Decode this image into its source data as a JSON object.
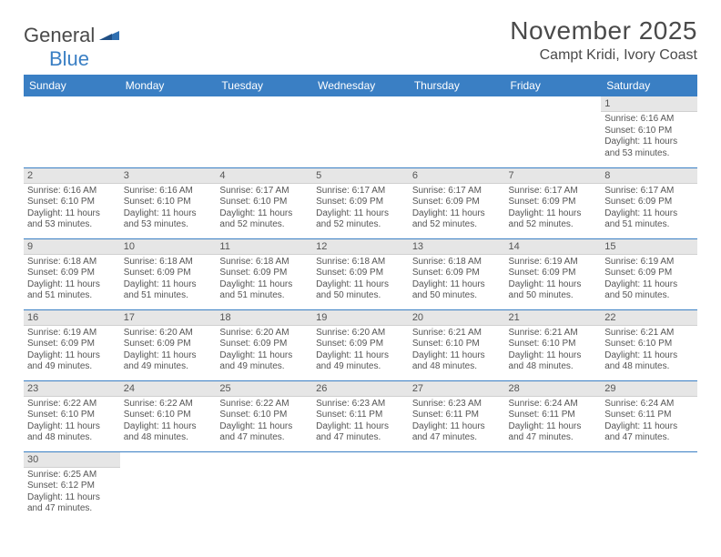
{
  "logo": {
    "general": "General",
    "blue": "Blue"
  },
  "title": "November 2025",
  "location": "Campt Kridi, Ivory Coast",
  "colors": {
    "header_bg": "#3a7fc4",
    "header_text": "#ffffff",
    "daynum_bg": "#e6e6e6",
    "border": "#3a7fc4",
    "body_text": "#555555",
    "title_text": "#4a4a4a"
  },
  "day_headers": [
    "Sunday",
    "Monday",
    "Tuesday",
    "Wednesday",
    "Thursday",
    "Friday",
    "Saturday"
  ],
  "weeks": [
    [
      null,
      null,
      null,
      null,
      null,
      null,
      {
        "n": "1",
        "sr": "Sunrise: 6:16 AM",
        "ss": "Sunset: 6:10 PM",
        "dl1": "Daylight: 11 hours",
        "dl2": "and 53 minutes."
      }
    ],
    [
      {
        "n": "2",
        "sr": "Sunrise: 6:16 AM",
        "ss": "Sunset: 6:10 PM",
        "dl1": "Daylight: 11 hours",
        "dl2": "and 53 minutes."
      },
      {
        "n": "3",
        "sr": "Sunrise: 6:16 AM",
        "ss": "Sunset: 6:10 PM",
        "dl1": "Daylight: 11 hours",
        "dl2": "and 53 minutes."
      },
      {
        "n": "4",
        "sr": "Sunrise: 6:17 AM",
        "ss": "Sunset: 6:10 PM",
        "dl1": "Daylight: 11 hours",
        "dl2": "and 52 minutes."
      },
      {
        "n": "5",
        "sr": "Sunrise: 6:17 AM",
        "ss": "Sunset: 6:09 PM",
        "dl1": "Daylight: 11 hours",
        "dl2": "and 52 minutes."
      },
      {
        "n": "6",
        "sr": "Sunrise: 6:17 AM",
        "ss": "Sunset: 6:09 PM",
        "dl1": "Daylight: 11 hours",
        "dl2": "and 52 minutes."
      },
      {
        "n": "7",
        "sr": "Sunrise: 6:17 AM",
        "ss": "Sunset: 6:09 PM",
        "dl1": "Daylight: 11 hours",
        "dl2": "and 52 minutes."
      },
      {
        "n": "8",
        "sr": "Sunrise: 6:17 AM",
        "ss": "Sunset: 6:09 PM",
        "dl1": "Daylight: 11 hours",
        "dl2": "and 51 minutes."
      }
    ],
    [
      {
        "n": "9",
        "sr": "Sunrise: 6:18 AM",
        "ss": "Sunset: 6:09 PM",
        "dl1": "Daylight: 11 hours",
        "dl2": "and 51 minutes."
      },
      {
        "n": "10",
        "sr": "Sunrise: 6:18 AM",
        "ss": "Sunset: 6:09 PM",
        "dl1": "Daylight: 11 hours",
        "dl2": "and 51 minutes."
      },
      {
        "n": "11",
        "sr": "Sunrise: 6:18 AM",
        "ss": "Sunset: 6:09 PM",
        "dl1": "Daylight: 11 hours",
        "dl2": "and 51 minutes."
      },
      {
        "n": "12",
        "sr": "Sunrise: 6:18 AM",
        "ss": "Sunset: 6:09 PM",
        "dl1": "Daylight: 11 hours",
        "dl2": "and 50 minutes."
      },
      {
        "n": "13",
        "sr": "Sunrise: 6:18 AM",
        "ss": "Sunset: 6:09 PM",
        "dl1": "Daylight: 11 hours",
        "dl2": "and 50 minutes."
      },
      {
        "n": "14",
        "sr": "Sunrise: 6:19 AM",
        "ss": "Sunset: 6:09 PM",
        "dl1": "Daylight: 11 hours",
        "dl2": "and 50 minutes."
      },
      {
        "n": "15",
        "sr": "Sunrise: 6:19 AM",
        "ss": "Sunset: 6:09 PM",
        "dl1": "Daylight: 11 hours",
        "dl2": "and 50 minutes."
      }
    ],
    [
      {
        "n": "16",
        "sr": "Sunrise: 6:19 AM",
        "ss": "Sunset: 6:09 PM",
        "dl1": "Daylight: 11 hours",
        "dl2": "and 49 minutes."
      },
      {
        "n": "17",
        "sr": "Sunrise: 6:20 AM",
        "ss": "Sunset: 6:09 PM",
        "dl1": "Daylight: 11 hours",
        "dl2": "and 49 minutes."
      },
      {
        "n": "18",
        "sr": "Sunrise: 6:20 AM",
        "ss": "Sunset: 6:09 PM",
        "dl1": "Daylight: 11 hours",
        "dl2": "and 49 minutes."
      },
      {
        "n": "19",
        "sr": "Sunrise: 6:20 AM",
        "ss": "Sunset: 6:09 PM",
        "dl1": "Daylight: 11 hours",
        "dl2": "and 49 minutes."
      },
      {
        "n": "20",
        "sr": "Sunrise: 6:21 AM",
        "ss": "Sunset: 6:10 PM",
        "dl1": "Daylight: 11 hours",
        "dl2": "and 48 minutes."
      },
      {
        "n": "21",
        "sr": "Sunrise: 6:21 AM",
        "ss": "Sunset: 6:10 PM",
        "dl1": "Daylight: 11 hours",
        "dl2": "and 48 minutes."
      },
      {
        "n": "22",
        "sr": "Sunrise: 6:21 AM",
        "ss": "Sunset: 6:10 PM",
        "dl1": "Daylight: 11 hours",
        "dl2": "and 48 minutes."
      }
    ],
    [
      {
        "n": "23",
        "sr": "Sunrise: 6:22 AM",
        "ss": "Sunset: 6:10 PM",
        "dl1": "Daylight: 11 hours",
        "dl2": "and 48 minutes."
      },
      {
        "n": "24",
        "sr": "Sunrise: 6:22 AM",
        "ss": "Sunset: 6:10 PM",
        "dl1": "Daylight: 11 hours",
        "dl2": "and 48 minutes."
      },
      {
        "n": "25",
        "sr": "Sunrise: 6:22 AM",
        "ss": "Sunset: 6:10 PM",
        "dl1": "Daylight: 11 hours",
        "dl2": "and 47 minutes."
      },
      {
        "n": "26",
        "sr": "Sunrise: 6:23 AM",
        "ss": "Sunset: 6:11 PM",
        "dl1": "Daylight: 11 hours",
        "dl2": "and 47 minutes."
      },
      {
        "n": "27",
        "sr": "Sunrise: 6:23 AM",
        "ss": "Sunset: 6:11 PM",
        "dl1": "Daylight: 11 hours",
        "dl2": "and 47 minutes."
      },
      {
        "n": "28",
        "sr": "Sunrise: 6:24 AM",
        "ss": "Sunset: 6:11 PM",
        "dl1": "Daylight: 11 hours",
        "dl2": "and 47 minutes."
      },
      {
        "n": "29",
        "sr": "Sunrise: 6:24 AM",
        "ss": "Sunset: 6:11 PM",
        "dl1": "Daylight: 11 hours",
        "dl2": "and 47 minutes."
      }
    ],
    [
      {
        "n": "30",
        "sr": "Sunrise: 6:25 AM",
        "ss": "Sunset: 6:12 PM",
        "dl1": "Daylight: 11 hours",
        "dl2": "and 47 minutes."
      },
      null,
      null,
      null,
      null,
      null,
      null
    ]
  ]
}
